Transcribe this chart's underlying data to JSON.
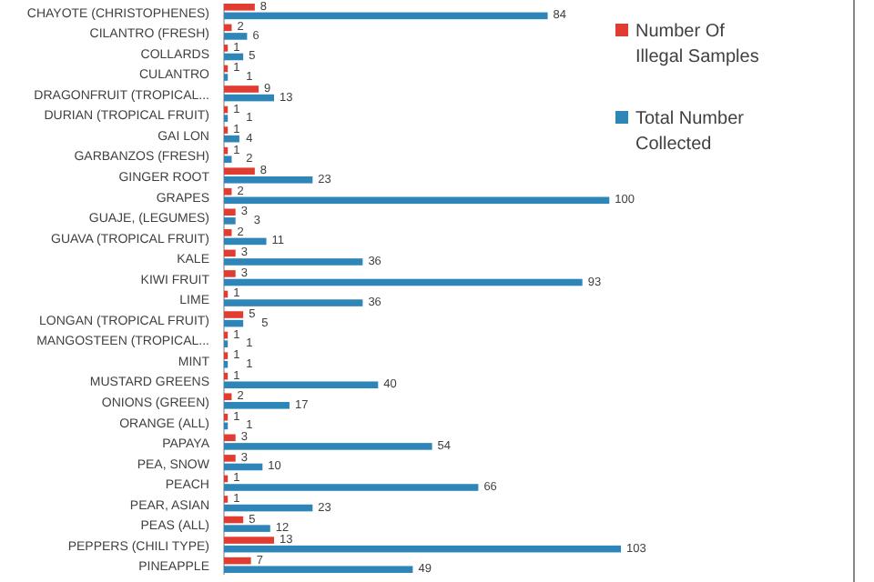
{
  "chart_data": {
    "type": "bar",
    "orientation": "horizontal",
    "data_labels": true,
    "legend": "top right",
    "categories": [
      "CHAYOTE (CHRISTOPHENES)",
      "CILANTRO (FRESH)",
      "COLLARDS",
      "CULANTRO",
      "DRAGONFRUIT (TROPICAL...",
      "DURIAN (TROPICAL FRUIT)",
      "GAI LON",
      "GARBANZOS (FRESH)",
      "GINGER ROOT",
      "GRAPES",
      "GUAJE, (LEGUMES)",
      "GUAVA (TROPICAL FRUIT)",
      "KALE",
      "KIWI FRUIT",
      "LIME",
      "LONGAN (TROPICAL FRUIT)",
      "MANGOSTEEN (TROPICAL...",
      "MINT",
      "MUSTARD GREENS",
      "ONIONS (GREEN)",
      "ORANGE (ALL)",
      "PAPAYA",
      "PEA, SNOW",
      "PEACH",
      "PEAR, ASIAN",
      "PEAS (ALL)",
      "PEPPERS (CHILI TYPE)",
      "PINEAPPLE"
    ],
    "series": [
      {
        "name": "Number Of Illegal Samples",
        "color": "#e03c31",
        "values": [
          8,
          2,
          1,
          1,
          9,
          1,
          1,
          1,
          8,
          2,
          3,
          2,
          3,
          3,
          1,
          5,
          1,
          1,
          1,
          2,
          1,
          3,
          3,
          1,
          1,
          5,
          13,
          7
        ]
      },
      {
        "name": "Total Number Collected",
        "color": "#2e86b8",
        "values": [
          84,
          6,
          5,
          1,
          13,
          1,
          4,
          2,
          23,
          100,
          3,
          11,
          36,
          93,
          36,
          5,
          1,
          1,
          40,
          17,
          1,
          54,
          10,
          66,
          23,
          12,
          103,
          49
        ]
      }
    ]
  }
}
